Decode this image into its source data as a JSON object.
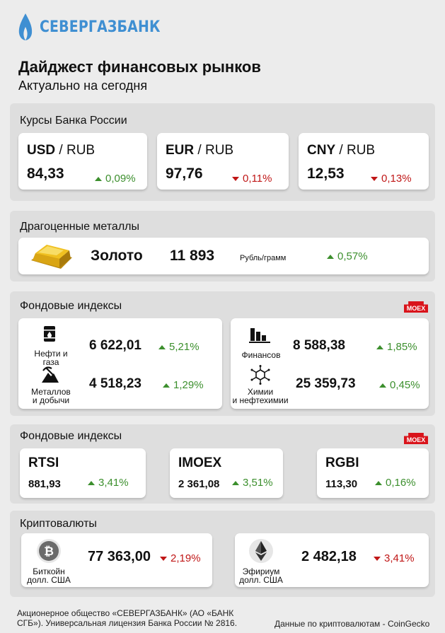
{
  "brand": {
    "name": "СЕВЕРГАЗБАНК",
    "accent": "#3f8fd2"
  },
  "header": {
    "title": "Дайджест финансовых рынков",
    "subtitle": "Актуально на сегодня"
  },
  "rates": {
    "title": "Курсы Банка России",
    "items": [
      {
        "base": "USD",
        "sep": " / ",
        "quote": "RUB",
        "value": "84,33",
        "change": "0,09%",
        "dir": "up"
      },
      {
        "base": "EUR",
        "sep": " / ",
        "quote": "RUB",
        "value": "97,76",
        "change": "0,11%",
        "dir": "down"
      },
      {
        "base": "CNY",
        "sep": " / ",
        "quote": "RUB",
        "value": "12,53",
        "change": "0,13%",
        "dir": "down"
      }
    ]
  },
  "metals": {
    "title": "Драгоценные металлы",
    "name": "Золото",
    "value": "11 893",
    "unit": "Рубль/грамм",
    "change": "0,57%",
    "dir": "up",
    "icon": "gold-bar-icon"
  },
  "sectors": {
    "title": "Фондовые индексы",
    "badge": "MOEX",
    "left": [
      {
        "label_l1": "Нефти и газа",
        "label_l2": "",
        "value": "6 622,01",
        "change": "5,21%",
        "icon": "oil-barrel-icon"
      },
      {
        "label_l1": "Металлов",
        "label_l2": "и добычи",
        "value": "4 518,23",
        "change": "1,29%",
        "icon": "mining-icon"
      }
    ],
    "right": [
      {
        "label_l1": "Финансов",
        "label_l2": "",
        "value": "8 588,38",
        "change": "1,85%",
        "icon": "bar-chart-icon"
      },
      {
        "label_l1": "Химии",
        "label_l2": "и нефтехимии",
        "value": "25 359,73",
        "change": "0,45%",
        "icon": "molecule-icon"
      }
    ]
  },
  "indices": {
    "title": "Фондовые индексы",
    "badge": "MOEX",
    "items": [
      {
        "name": "RTSI",
        "value": "881,93",
        "change": "3,41%",
        "dir": "up"
      },
      {
        "name": "IMOEX",
        "value": "2 361,08",
        "change": "3,51%",
        "dir": "up"
      },
      {
        "name": "RGBI",
        "value": "113,30",
        "change": "0,16%",
        "dir": "up"
      }
    ]
  },
  "crypto": {
    "title": "Криптовалюты",
    "items": [
      {
        "label_l1": "Биткойн",
        "label_l2": "долл. США",
        "value": "77 363,00",
        "change": "2,19%",
        "dir": "down",
        "icon": "bitcoin-icon"
      },
      {
        "label_l1": "Эфириум",
        "label_l2": "долл. США",
        "value": "2 482,18",
        "change": "3,41%",
        "dir": "down",
        "icon": "ethereum-icon"
      }
    ]
  },
  "footer": {
    "legal": "Акционерное общество «СЕВЕРГАЗБАНК» (АО «БАНК СГБ»). Универсальная лицензия Банка России № 2816.",
    "source": "Данные по криптовалютам - CoinGecko"
  },
  "colors": {
    "up": "#3c8f2d",
    "down": "#c01717",
    "moex": "#d9141b",
    "panel": "#dedede",
    "page": "#ececec"
  }
}
